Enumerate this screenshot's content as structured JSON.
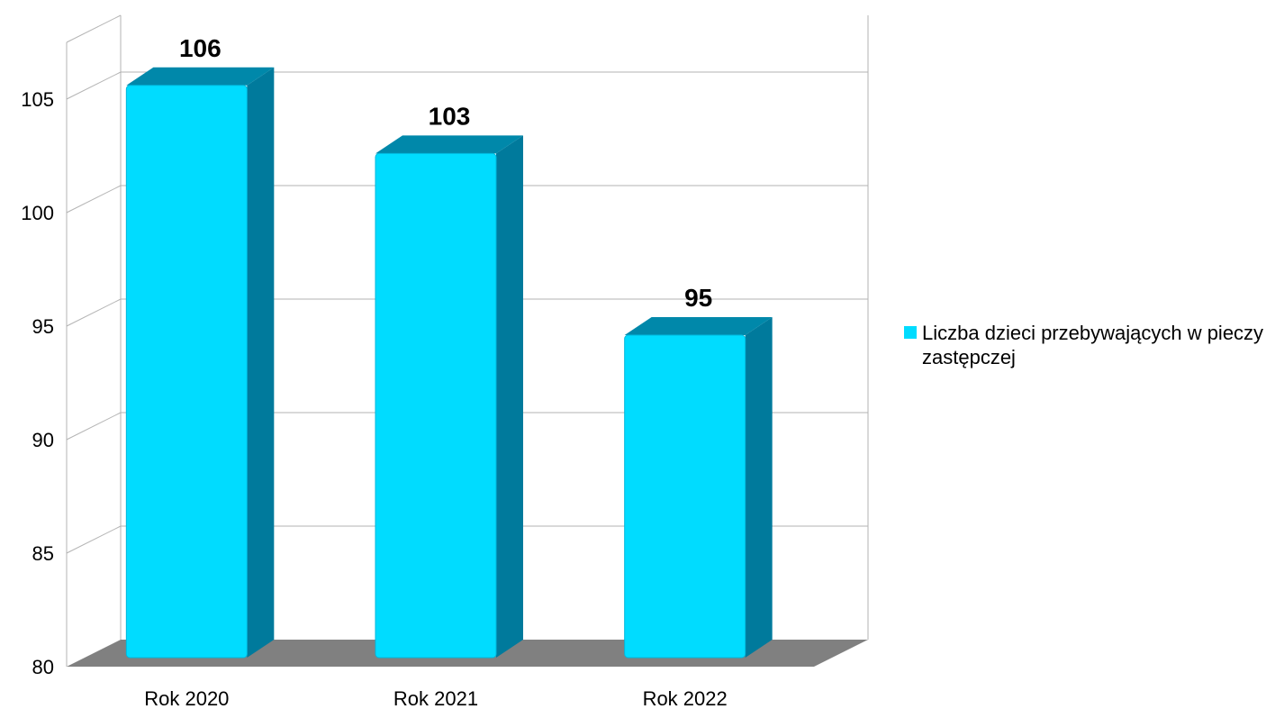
{
  "chart_data": {
    "type": "bar",
    "categories": [
      "Rok 2020",
      "Rok 2021",
      "Rok 2022"
    ],
    "series": [
      {
        "name": "Liczba dzieci przebywających w pieczy zastępczej",
        "values": [
          106,
          103,
          95
        ],
        "data_labels": [
          "106",
          "103",
          "95"
        ]
      }
    ],
    "ylim": [
      80,
      107.5
    ],
    "y_ticks": [
      80,
      85,
      90,
      95,
      100,
      105
    ],
    "y_tick_labels": [
      "80",
      "85",
      "90",
      "95",
      "100",
      "105"
    ],
    "grid": true,
    "legend_position": "right",
    "style": "3d-column",
    "colors": {
      "bar_front": "#00dcff",
      "bar_side": "#007a9c",
      "bar_top": "#0088aa",
      "floor": "#808080",
      "grid": "#b3b3b3"
    }
  }
}
